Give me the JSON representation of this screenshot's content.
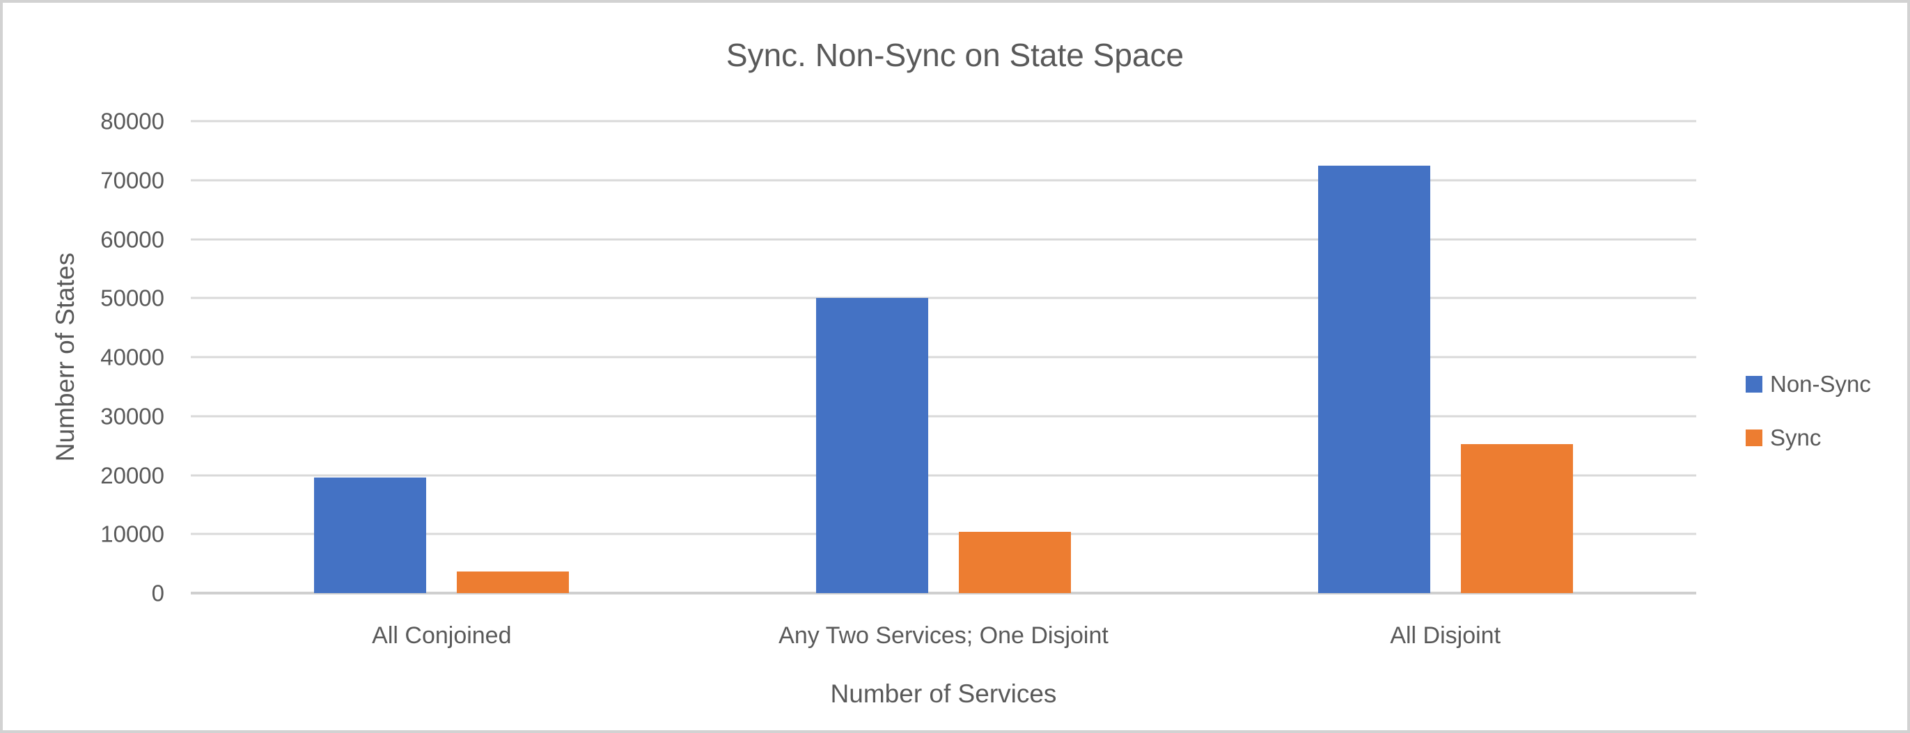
{
  "window": {
    "background": "#ffffff",
    "border_color": "#d2d2d2",
    "text_color": "#595959"
  },
  "chart_data": {
    "type": "bar",
    "title": "Sync. Non-Sync on State Space",
    "xlabel": "Number of Services",
    "ylabel": "Numberr of States",
    "categories": [
      "All Conjoined",
      "Any Two Services; One Disjoint",
      "All Disjoint"
    ],
    "series": [
      {
        "name": "Non-Sync",
        "color": "#4472C4",
        "values": [
          19600,
          50000,
          72500
        ]
      },
      {
        "name": "Sync",
        "color": "#ED7D31",
        "values": [
          3700,
          10400,
          25300
        ]
      }
    ],
    "ylim": [
      0,
      80000
    ],
    "yticks": [
      0,
      10000,
      20000,
      30000,
      40000,
      50000,
      60000,
      70000,
      80000
    ],
    "grid": true,
    "gridline_color": "#d9d9d9",
    "legend_position": "right",
    "legend_entries": [
      "Non-Sync",
      "Sync"
    ]
  }
}
